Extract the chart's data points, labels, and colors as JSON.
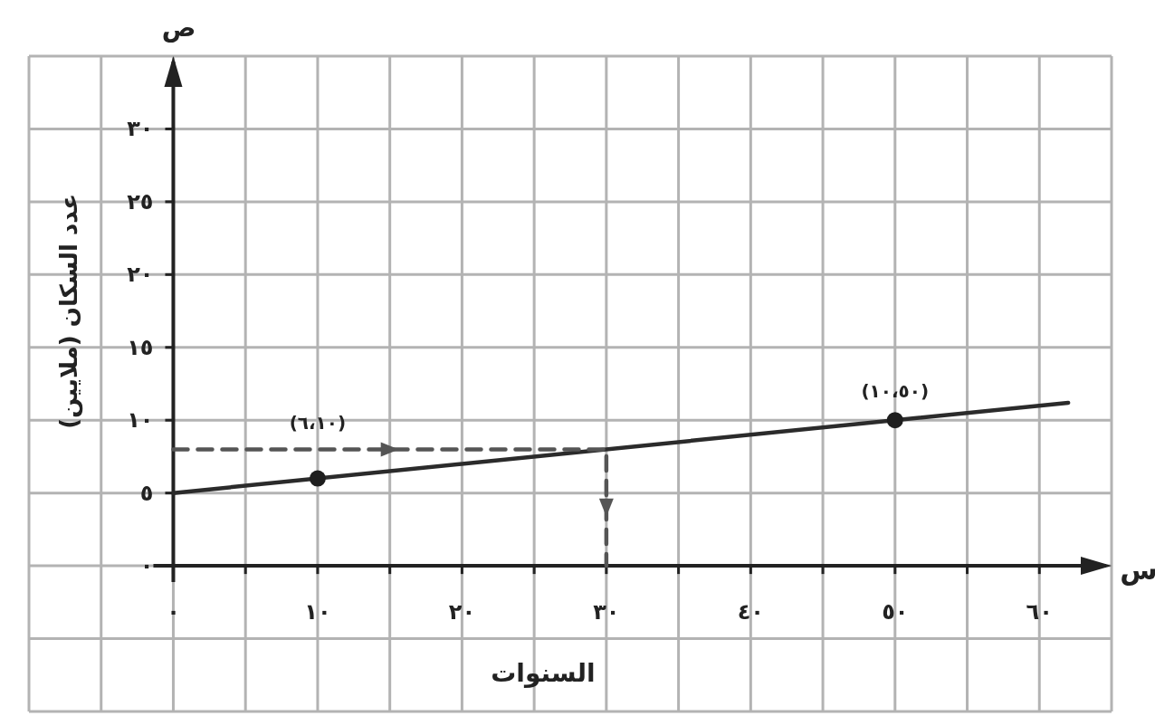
{
  "chart_data": {
    "type": "line",
    "xlabel": "السنوات",
    "ylabel": "عدد السكان (ملايين)",
    "annotations": [
      "س",
      "ص",
      {
        "text": "(٦،١٠)",
        "x": 10,
        "y": 6
      },
      {
        "text": "(١٠،٥٠)",
        "x": 50,
        "y": 10
      }
    ],
    "xlim": [
      -10,
      65
    ],
    "ylim": [
      -10,
      35
    ],
    "xticks": [
      {
        "value": -10,
        "label": null
      },
      {
        "value": -5,
        "label": null
      },
      {
        "value": 0,
        "label": "٠"
      },
      {
        "value": 5,
        "label": null
      },
      {
        "value": 10,
        "label": "١٠"
      },
      {
        "value": 15,
        "label": null
      },
      {
        "value": 20,
        "label": "٢٠"
      },
      {
        "value": 25,
        "label": null
      },
      {
        "value": 30,
        "label": "٣٠"
      },
      {
        "value": 35,
        "label": null
      },
      {
        "value": 40,
        "label": "٤٠"
      },
      {
        "value": 45,
        "label": null
      },
      {
        "value": 50,
        "label": "٥٠"
      },
      {
        "value": 55,
        "label": null
      },
      {
        "value": 60,
        "label": "٦٠"
      },
      {
        "value": 65,
        "label": null
      }
    ],
    "yticks": [
      {
        "value": -10,
        "label": null
      },
      {
        "value": -5,
        "label": null
      },
      {
        "value": 0,
        "label": "٠"
      },
      {
        "value": 5,
        "label": "٥"
      },
      {
        "value": 10,
        "label": "١٠"
      },
      {
        "value": 15,
        "label": "١٥"
      },
      {
        "value": 20,
        "label": "٢٠"
      },
      {
        "value": 25,
        "label": "٢٥"
      },
      {
        "value": 30,
        "label": "٣٠"
      },
      {
        "value": 35,
        "label": null
      }
    ],
    "grid": true,
    "series": [
      {
        "color": "#2b2b2b",
        "x": [
          0,
          62
        ],
        "values": [
          5,
          11.2
        ],
        "line_style": "solid"
      },
      {
        "color": "#555555",
        "x": [
          0,
          30,
          30
        ],
        "values": [
          8,
          8,
          0
        ],
        "line_style": "dashed"
      },
      {
        "type": "scatter",
        "color": "#1e1e1e",
        "x": [
          10,
          50
        ],
        "values": [
          6,
          10
        ],
        "marker": "circle"
      }
    ]
  }
}
